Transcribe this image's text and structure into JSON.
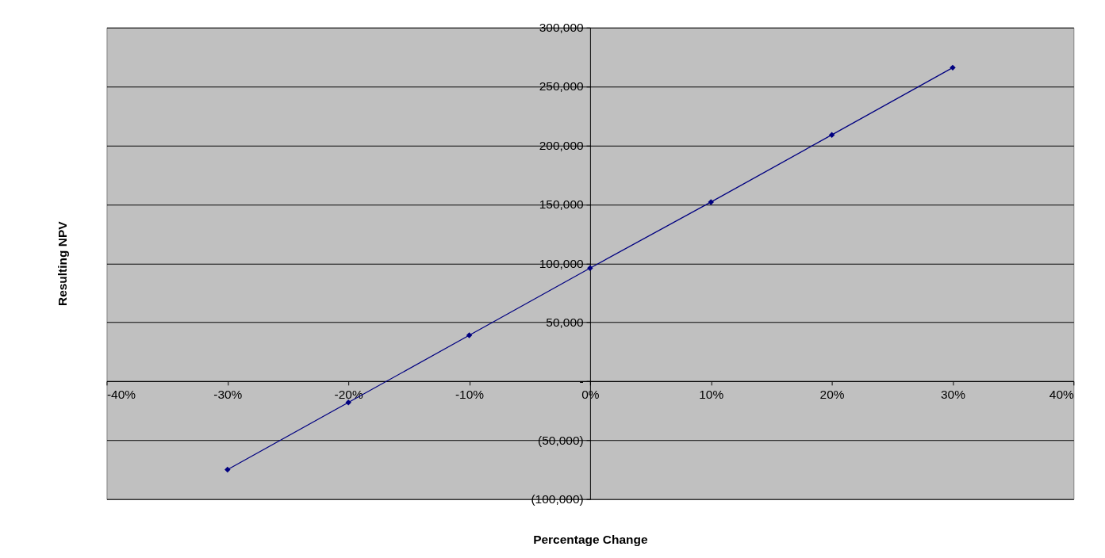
{
  "chart_data": {
    "type": "line",
    "xlabel": "Percentage Change",
    "ylabel": "Resulting NPV",
    "x": [
      -30,
      -20,
      -10,
      0,
      10,
      20,
      30
    ],
    "series": [
      {
        "color": "#000080",
        "values": [
          -75000,
          -18000,
          39000,
          96000,
          152000,
          209000,
          266000
        ]
      }
    ],
    "xlim": [
      -40,
      40
    ],
    "xticks": [
      {
        "value": -40,
        "label": "-40%"
      },
      {
        "value": -30,
        "label": "-30%"
      },
      {
        "value": -20,
        "label": "-20%"
      },
      {
        "value": -10,
        "label": "-10%"
      },
      {
        "value": 0,
        "label": "0%"
      },
      {
        "value": 10,
        "label": "10%"
      },
      {
        "value": 20,
        "label": "20%"
      },
      {
        "value": 30,
        "label": "30%"
      },
      {
        "value": 40,
        "label": "40%"
      }
    ],
    "ylim": [
      -100000,
      300000
    ],
    "yticks": [
      {
        "value": -100000,
        "label": "(100,000)"
      },
      {
        "value": -50000,
        "label": "(50,000)"
      },
      {
        "value": 0,
        "label": "-"
      },
      {
        "value": 50000,
        "label": "50,000"
      },
      {
        "value": 100000,
        "label": "100,000"
      },
      {
        "value": 150000,
        "label": "150,000"
      },
      {
        "value": 200000,
        "label": "200,000"
      },
      {
        "value": 250000,
        "label": "250,000"
      },
      {
        "value": 300000,
        "label": "300,000"
      }
    ],
    "grid": "y",
    "marker": "diamond",
    "line_style": "solid"
  }
}
